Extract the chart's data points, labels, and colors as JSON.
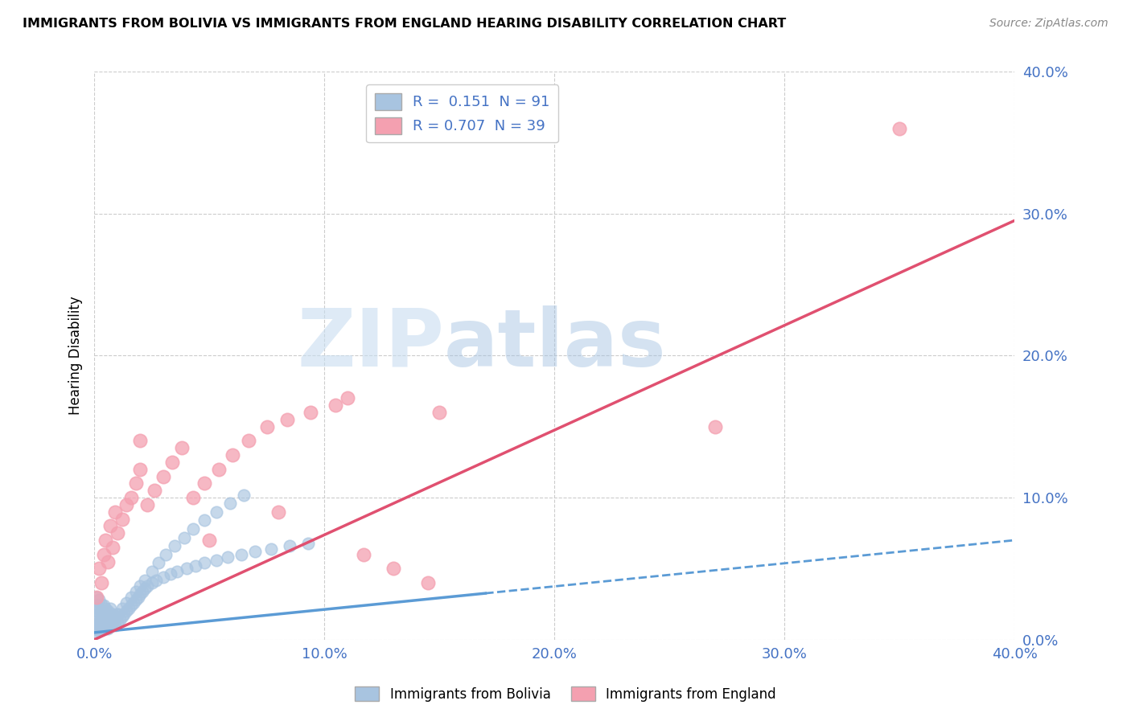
{
  "title": "IMMIGRANTS FROM BOLIVIA VS IMMIGRANTS FROM ENGLAND HEARING DISABILITY CORRELATION CHART",
  "source": "Source: ZipAtlas.com",
  "ylabel": "Hearing Disability",
  "xlim": [
    0.0,
    0.4
  ],
  "ylim": [
    0.0,
    0.4
  ],
  "xticks": [
    0.0,
    0.1,
    0.2,
    0.3,
    0.4
  ],
  "yticks": [
    0.0,
    0.1,
    0.2,
    0.3,
    0.4
  ],
  "bolivia_color": "#a8c4e0",
  "bolivia_line_color": "#5b9bd5",
  "england_color": "#f4a0b0",
  "england_line_color": "#e05070",
  "bolivia_R": 0.151,
  "bolivia_N": 91,
  "england_R": 0.707,
  "england_N": 39,
  "watermark_zip": "ZIP",
  "watermark_atlas": "atlas",
  "bolivia_scatter_x": [
    0.001,
    0.001,
    0.001,
    0.001,
    0.001,
    0.002,
    0.002,
    0.002,
    0.002,
    0.002,
    0.003,
    0.003,
    0.003,
    0.003,
    0.004,
    0.004,
    0.004,
    0.005,
    0.005,
    0.005,
    0.006,
    0.006,
    0.006,
    0.007,
    0.007,
    0.007,
    0.008,
    0.008,
    0.009,
    0.009,
    0.01,
    0.01,
    0.011,
    0.012,
    0.013,
    0.014,
    0.015,
    0.016,
    0.017,
    0.018,
    0.019,
    0.02,
    0.021,
    0.022,
    0.023,
    0.025,
    0.027,
    0.03,
    0.033,
    0.036,
    0.04,
    0.044,
    0.048,
    0.053,
    0.058,
    0.064,
    0.07,
    0.077,
    0.085,
    0.093,
    0.001,
    0.001,
    0.002,
    0.002,
    0.003,
    0.003,
    0.004,
    0.004,
    0.005,
    0.005,
    0.006,
    0.007,
    0.008,
    0.009,
    0.01,
    0.012,
    0.014,
    0.016,
    0.018,
    0.02,
    0.022,
    0.025,
    0.028,
    0.031,
    0.035,
    0.039,
    0.043,
    0.048,
    0.053,
    0.059,
    0.065
  ],
  "bolivia_scatter_y": [
    0.01,
    0.015,
    0.02,
    0.025,
    0.03,
    0.008,
    0.012,
    0.018,
    0.022,
    0.028,
    0.01,
    0.015,
    0.02,
    0.025,
    0.012,
    0.018,
    0.024,
    0.01,
    0.016,
    0.022,
    0.008,
    0.014,
    0.02,
    0.01,
    0.016,
    0.022,
    0.012,
    0.018,
    0.01,
    0.016,
    0.012,
    0.018,
    0.014,
    0.016,
    0.018,
    0.02,
    0.022,
    0.024,
    0.026,
    0.028,
    0.03,
    0.032,
    0.034,
    0.036,
    0.038,
    0.04,
    0.042,
    0.044,
    0.046,
    0.048,
    0.05,
    0.052,
    0.054,
    0.056,
    0.058,
    0.06,
    0.062,
    0.064,
    0.066,
    0.068,
    0.005,
    0.008,
    0.006,
    0.01,
    0.007,
    0.011,
    0.008,
    0.012,
    0.009,
    0.013,
    0.01,
    0.012,
    0.014,
    0.016,
    0.018,
    0.022,
    0.026,
    0.03,
    0.034,
    0.038,
    0.042,
    0.048,
    0.054,
    0.06,
    0.066,
    0.072,
    0.078,
    0.084,
    0.09,
    0.096,
    0.102
  ],
  "england_scatter_x": [
    0.001,
    0.002,
    0.003,
    0.004,
    0.005,
    0.006,
    0.007,
    0.008,
    0.009,
    0.01,
    0.012,
    0.014,
    0.016,
    0.018,
    0.02,
    0.023,
    0.026,
    0.03,
    0.034,
    0.038,
    0.043,
    0.048,
    0.054,
    0.06,
    0.067,
    0.075,
    0.084,
    0.094,
    0.105,
    0.117,
    0.13,
    0.145,
    0.02,
    0.05,
    0.08,
    0.11,
    0.15,
    0.27,
    0.35
  ],
  "england_scatter_y": [
    0.03,
    0.05,
    0.04,
    0.06,
    0.07,
    0.055,
    0.08,
    0.065,
    0.09,
    0.075,
    0.085,
    0.095,
    0.1,
    0.11,
    0.12,
    0.095,
    0.105,
    0.115,
    0.125,
    0.135,
    0.1,
    0.11,
    0.12,
    0.13,
    0.14,
    0.15,
    0.155,
    0.16,
    0.165,
    0.06,
    0.05,
    0.04,
    0.14,
    0.07,
    0.09,
    0.17,
    0.16,
    0.15,
    0.36
  ],
  "england_trend_x0": 0.0,
  "england_trend_y0": 0.0,
  "england_trend_x1": 0.4,
  "england_trend_y1": 0.295,
  "bolivia_trend_x0": 0.0,
  "bolivia_trend_y0": 0.005,
  "bolivia_trend_x1": 0.4,
  "bolivia_trend_y1": 0.07
}
